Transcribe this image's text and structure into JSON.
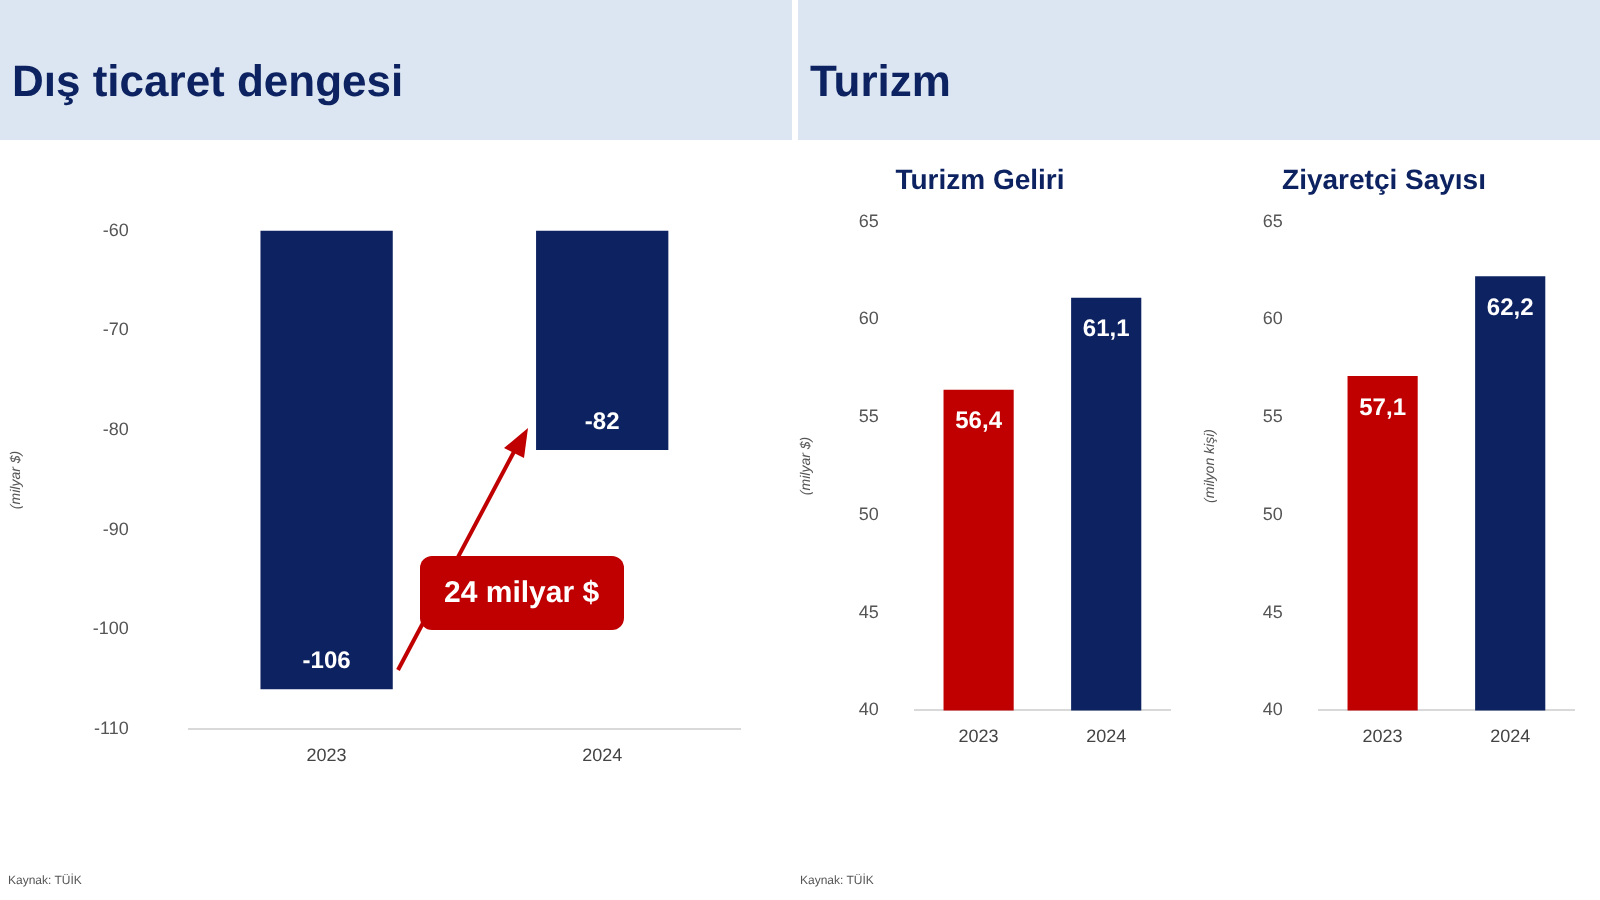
{
  "chart_data": [
    {
      "type": "bar",
      "title": "Dış ticaret dengesi",
      "ylabel": "(milyar $)",
      "categories": [
        "2023",
        "2024"
      ],
      "values": [
        -106,
        -82
      ],
      "color": "#0d2260",
      "ylim": [
        -110,
        -60
      ],
      "yticks": [
        -110,
        -100,
        -90,
        -80,
        -70,
        -60
      ],
      "data_labels": true,
      "grid": false,
      "legend": false,
      "annotations": [
        "24 milyar $",
        "Kaynak: TÜİK"
      ]
    },
    {
      "type": "bar",
      "title": "Turizm Geliri",
      "ylabel": "(milyar $)",
      "categories": [
        "2023",
        "2024"
      ],
      "values": [
        56.4,
        61.1
      ],
      "colors": [
        "#c00000",
        "#0d2260"
      ],
      "value_labels": [
        "56,4",
        "61,1"
      ],
      "ylim": [
        40,
        65
      ],
      "yticks": [
        40,
        45,
        50,
        55,
        60,
        65
      ],
      "grid": false,
      "legend": false,
      "annotations": [
        "Turizm",
        "Kaynak: TÜİK"
      ]
    },
    {
      "type": "bar",
      "title": "Ziyaretçi Sayısı",
      "ylabel": "(milyon kişi)",
      "categories": [
        "2023",
        "2024"
      ],
      "values": [
        57.1,
        62.2
      ],
      "colors": [
        "#c00000",
        "#0d2260"
      ],
      "value_labels": [
        "57,1",
        "62,2"
      ],
      "ylim": [
        40,
        65
      ],
      "yticks": [
        40,
        45,
        50,
        55,
        60,
        65
      ],
      "grid": false,
      "legend": false
    }
  ]
}
